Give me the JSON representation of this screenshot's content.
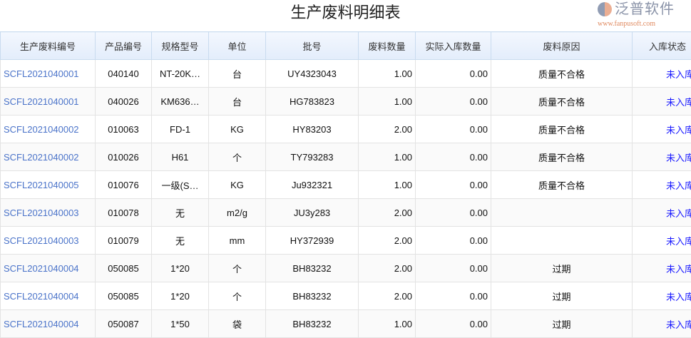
{
  "title": "生产废料明细表",
  "columns": [
    "生产废料编号",
    "产品编号",
    "规格型号",
    "单位",
    "批号",
    "废料数量",
    "实际入库数量",
    "废料原因",
    "入库状态"
  ],
  "rows": [
    [
      "SCFL2021040001",
      "040140",
      "NT-20K…",
      "台",
      "UY4323043",
      "1.00",
      "0.00",
      "质量不合格",
      "未入库"
    ],
    [
      "SCFL2021040001",
      "040026",
      "KM636…",
      "台",
      "HG783823",
      "1.00",
      "0.00",
      "质量不合格",
      "未入库"
    ],
    [
      "SCFL2021040002",
      "010063",
      "FD-1",
      "KG",
      "HY83203",
      "2.00",
      "0.00",
      "质量不合格",
      "未入库"
    ],
    [
      "SCFL2021040002",
      "010026",
      "H61",
      "个",
      "TY793283",
      "1.00",
      "0.00",
      "质量不合格",
      "未入库"
    ],
    [
      "SCFL2021040005",
      "010076",
      "一级(S…",
      "KG",
      "Ju932321",
      "1.00",
      "0.00",
      "质量不合格",
      "未入库"
    ],
    [
      "SCFL2021040003",
      "010078",
      "无",
      "m2/g",
      "JU3y283",
      "2.00",
      "0.00",
      "",
      "未入库"
    ],
    [
      "SCFL2021040003",
      "010079",
      "无",
      "mm",
      "HY372939",
      "2.00",
      "0.00",
      "",
      "未入库"
    ],
    [
      "SCFL2021040004",
      "050085",
      "1*20",
      "个",
      "BH83232",
      "2.00",
      "0.00",
      "过期",
      "未入库"
    ],
    [
      "SCFL2021040004",
      "050085",
      "1*20",
      "个",
      "BH83232",
      "2.00",
      "0.00",
      "过期",
      "未入库"
    ],
    [
      "SCFL2021040004",
      "050087",
      "1*50",
      "袋",
      "BH83232",
      "1.00",
      "0.00",
      "过期",
      "未入库"
    ]
  ],
  "watermark": {
    "name": "泛普软件",
    "url": "www.fanpusoft.com"
  }
}
